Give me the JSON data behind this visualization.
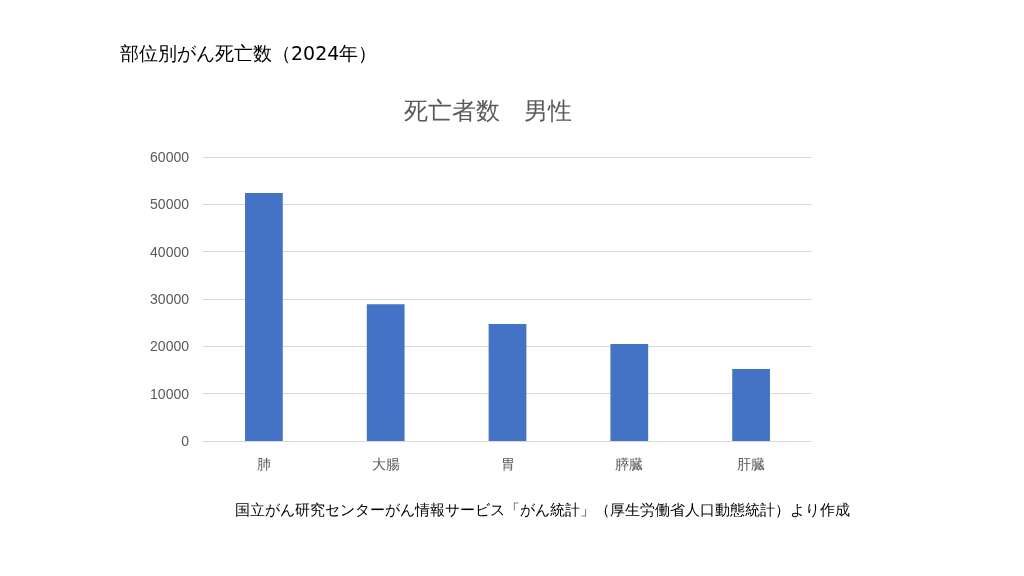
{
  "chart_data": {
    "type": "bar",
    "title": "部位別がん死亡数（2024年）",
    "subtitle": "死亡者数　男性",
    "categories": [
      "肺",
      "大腸",
      "胃",
      "膵臓",
      "肝臓"
    ],
    "values": [
      52400,
      28900,
      24700,
      20500,
      15200
    ],
    "color": "#4472c4",
    "ylim": [
      0,
      60000
    ],
    "yticks": [
      0,
      10000,
      20000,
      30000,
      40000,
      50000,
      60000
    ],
    "grid": "y",
    "annotations": [
      "国立がん研究センターがん情報サービス「がん統計」（厚生労働省人口動態統計）より作成"
    ]
  }
}
